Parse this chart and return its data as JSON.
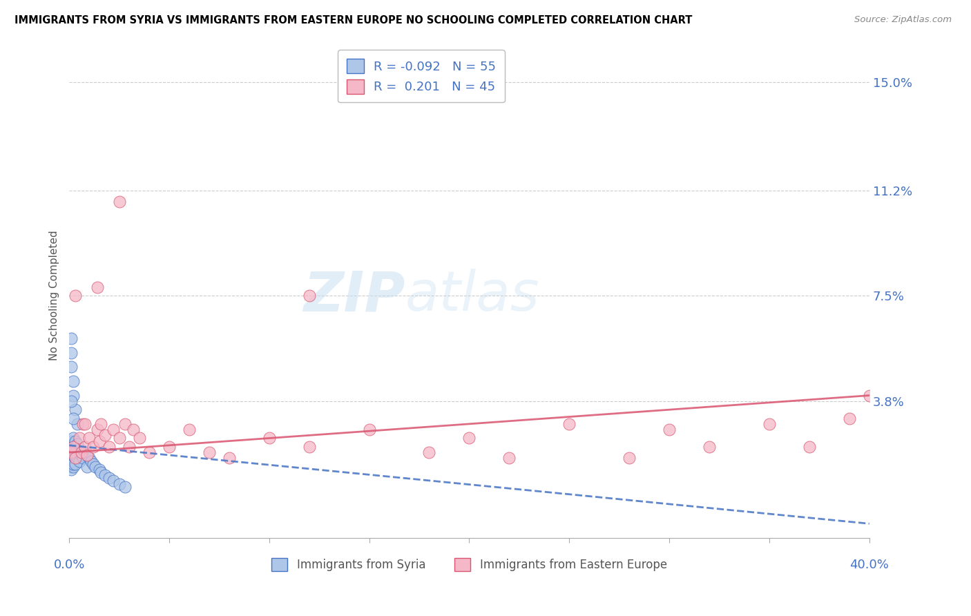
{
  "title": "IMMIGRANTS FROM SYRIA VS IMMIGRANTS FROM EASTERN EUROPE NO SCHOOLING COMPLETED CORRELATION CHART",
  "source": "Source: ZipAtlas.com",
  "ylabel": "No Schooling Completed",
  "legend_label1": "Immigrants from Syria",
  "legend_label2": "Immigrants from Eastern Europe",
  "r1": "-0.092",
  "n1": "55",
  "r2": "0.201",
  "n2": "45",
  "color_syria": "#aec6e8",
  "color_eastern": "#f5b8c8",
  "color_syria_line": "#4472c4",
  "color_eastern_line": "#d9546e",
  "watermark_color": "#cde4f5",
  "right_yticks": [
    0.038,
    0.075,
    0.112,
    0.15
  ],
  "right_yticklabels": [
    "3.8%",
    "7.5%",
    "11.2%",
    "15.0%"
  ],
  "xlim": [
    0.0,
    0.4
  ],
  "ylim": [
    -0.01,
    0.16
  ],
  "syria_x": [
    0.001,
    0.001,
    0.001,
    0.001,
    0.001,
    0.001,
    0.001,
    0.001,
    0.001,
    0.001,
    0.002,
    0.002,
    0.002,
    0.002,
    0.002,
    0.002,
    0.002,
    0.002,
    0.002,
    0.002,
    0.003,
    0.003,
    0.003,
    0.003,
    0.003,
    0.003,
    0.004,
    0.004,
    0.004,
    0.005,
    0.005,
    0.006,
    0.007,
    0.008,
    0.009,
    0.01,
    0.011,
    0.012,
    0.013,
    0.015,
    0.016,
    0.018,
    0.02,
    0.022,
    0.025,
    0.028,
    0.001,
    0.001,
    0.001,
    0.002,
    0.002,
    0.003,
    0.004,
    0.001,
    0.002
  ],
  "syria_y": [
    0.02,
    0.018,
    0.022,
    0.015,
    0.017,
    0.024,
    0.019,
    0.014,
    0.021,
    0.016,
    0.023,
    0.02,
    0.018,
    0.025,
    0.015,
    0.022,
    0.017,
    0.019,
    0.021,
    0.016,
    0.022,
    0.019,
    0.024,
    0.018,
    0.02,
    0.016,
    0.021,
    0.018,
    0.023,
    0.02,
    0.017,
    0.019,
    0.018,
    0.02,
    0.015,
    0.018,
    0.017,
    0.016,
    0.015,
    0.014,
    0.013,
    0.012,
    0.011,
    0.01,
    0.009,
    0.008,
    0.05,
    0.055,
    0.06,
    0.045,
    0.04,
    0.035,
    0.03,
    0.038,
    0.032
  ],
  "eastern_x": [
    0.001,
    0.002,
    0.003,
    0.005,
    0.006,
    0.007,
    0.008,
    0.009,
    0.01,
    0.012,
    0.014,
    0.015,
    0.016,
    0.018,
    0.02,
    0.022,
    0.025,
    0.028,
    0.03,
    0.032,
    0.035,
    0.04,
    0.05,
    0.06,
    0.07,
    0.08,
    0.1,
    0.12,
    0.15,
    0.18,
    0.2,
    0.22,
    0.25,
    0.28,
    0.3,
    0.32,
    0.35,
    0.37,
    0.39,
    0.4,
    0.003,
    0.008,
    0.014,
    0.025,
    0.12
  ],
  "eastern_y": [
    0.02,
    0.022,
    0.018,
    0.025,
    0.02,
    0.03,
    0.022,
    0.019,
    0.025,
    0.022,
    0.028,
    0.024,
    0.03,
    0.026,
    0.022,
    0.028,
    0.025,
    0.03,
    0.022,
    0.028,
    0.025,
    0.02,
    0.022,
    0.028,
    0.02,
    0.018,
    0.025,
    0.022,
    0.028,
    0.02,
    0.025,
    0.018,
    0.03,
    0.018,
    0.028,
    0.022,
    0.03,
    0.022,
    0.032,
    0.04,
    0.075,
    0.03,
    0.078,
    0.108,
    0.075
  ],
  "syria_trend_x": [
    0.0,
    0.4
  ],
  "syria_trend_y": [
    0.0225,
    -0.005
  ],
  "eastern_trend_x": [
    0.0,
    0.4
  ],
  "eastern_trend_y": [
    0.02,
    0.04
  ]
}
